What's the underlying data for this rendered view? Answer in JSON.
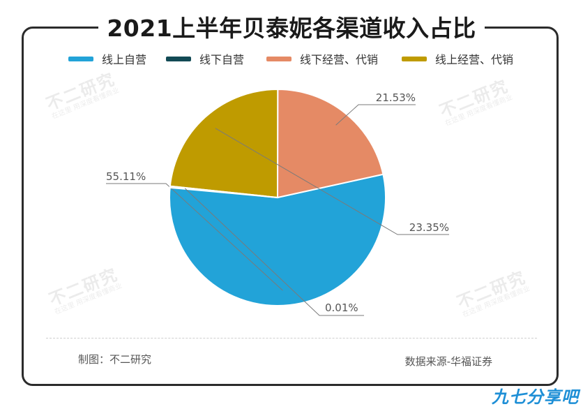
{
  "title": "2021上半年贝泰妮各渠道收入占比",
  "legend_items": [
    {
      "label": "线上自营",
      "color": "#22a3d8"
    },
    {
      "label": "线下自营",
      "color": "#124a55"
    },
    {
      "label": "线下经营、代销",
      "color": "#e58a65"
    },
    {
      "label": "线上经营、代销",
      "color": "#bf9b00"
    }
  ],
  "chart_data": {
    "type": "pie",
    "title": "2021上半年贝泰妮各渠道收入占比",
    "start_angle_deg": 174,
    "direction": "counterclockwise",
    "legend_placement": "top",
    "slices": [
      {
        "label": "线上自营",
        "value": 55.11,
        "display": "55.11%",
        "color": "#22a3d8"
      },
      {
        "label": "线下经营、代销",
        "value": 21.53,
        "display": "21.53%",
        "color": "#e58a65"
      },
      {
        "label": "线上经营、代销",
        "value": 23.35,
        "display": "23.35%",
        "color": "#bf9b00"
      },
      {
        "label": "线下自营",
        "value": 0.01,
        "display": "0.01%",
        "color": "#124a55"
      }
    ]
  },
  "watermark": {
    "name": "不二研究",
    "tagline": "在这里 用深度看懂商业"
  },
  "footer": {
    "left": "制图：不二研究",
    "right": "数据来源-华福证券"
  },
  "site_logo": "九七分享吧"
}
